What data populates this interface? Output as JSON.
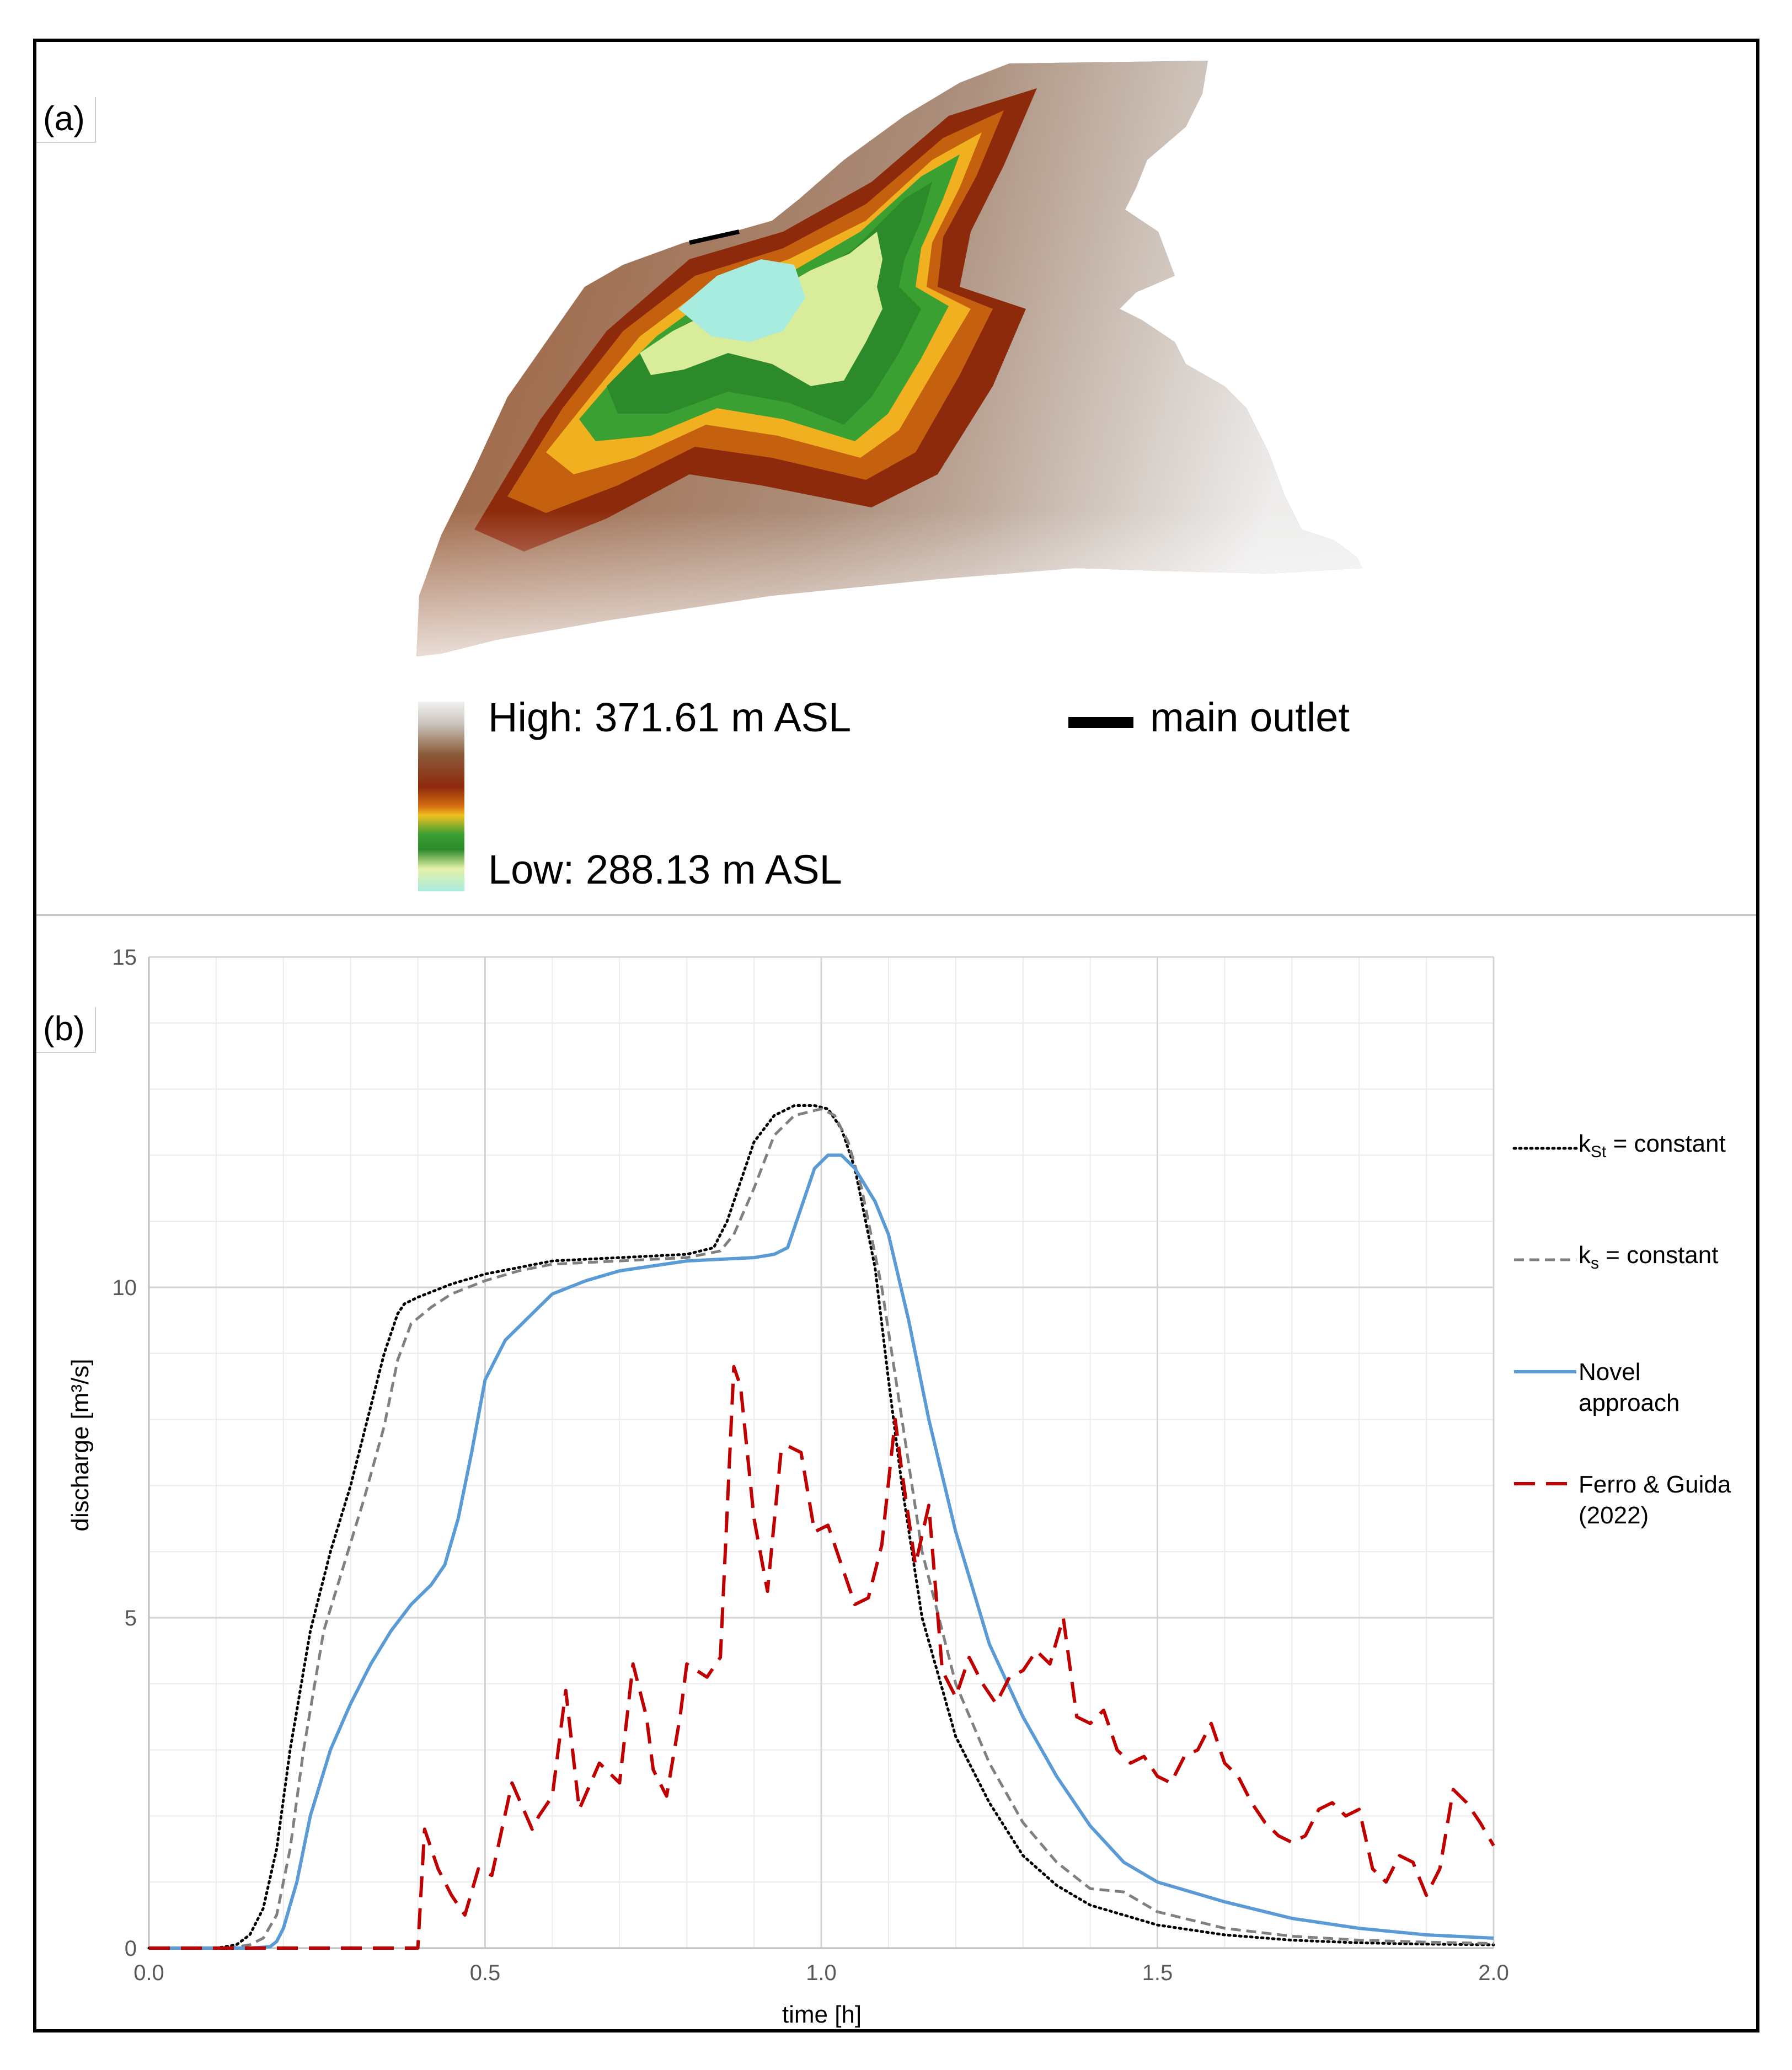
{
  "panel_a": {
    "label": "(a)",
    "legend_high": "High: 371.61 m ASL",
    "legend_low": "Low: 288.13 m ASL",
    "legend_outlet": "main outlet"
  },
  "panel_b": {
    "label": "(b)"
  },
  "chart_data": {
    "type": "line",
    "title": "",
    "xlabel": "time [h]",
    "ylabel": "discharge [m³/s]",
    "xlim": [
      0.0,
      2.0
    ],
    "ylim": [
      0,
      15
    ],
    "grid": true,
    "legend_position": "right",
    "x_ticks": [
      "0.0",
      "0.5",
      "1.0",
      "1.5",
      "2.0"
    ],
    "y_ticks": [
      "0",
      "5",
      "10",
      "15"
    ],
    "series": [
      {
        "name": "kSt = constant",
        "legend_main": "k",
        "legend_sub": "St",
        "legend_rest": " = constant",
        "color": "#000000",
        "style": "dotted",
        "x": [
          0,
          0.1,
          0.13,
          0.15,
          0.17,
          0.19,
          0.21,
          0.24,
          0.27,
          0.3,
          0.33,
          0.35,
          0.37,
          0.38,
          0.4,
          0.45,
          0.5,
          0.55,
          0.6,
          0.7,
          0.8,
          0.84,
          0.86,
          0.88,
          0.9,
          0.93,
          0.96,
          0.99,
          1.01,
          1.03,
          1.05,
          1.08,
          1.1,
          1.12,
          1.15,
          1.2,
          1.25,
          1.3,
          1.35,
          1.4,
          1.5,
          1.6,
          1.7,
          1.8,
          1.9,
          2.0
        ],
        "y": [
          0,
          0,
          0.05,
          0.2,
          0.6,
          1.5,
          3.0,
          4.8,
          6.0,
          7.0,
          8.2,
          9.0,
          9.6,
          9.75,
          9.85,
          10.05,
          10.2,
          10.3,
          10.4,
          10.45,
          10.5,
          10.6,
          11.0,
          11.6,
          12.2,
          12.6,
          12.75,
          12.75,
          12.7,
          12.4,
          11.8,
          10.3,
          8.6,
          7.0,
          5.0,
          3.2,
          2.2,
          1.4,
          0.95,
          0.65,
          0.35,
          0.2,
          0.12,
          0.08,
          0.06,
          0.05
        ]
      },
      {
        "name": "ks = constant",
        "legend_main": "k",
        "legend_sub": "s",
        "legend_rest": " = constant",
        "color": "#808080",
        "style": "dashed",
        "x": [
          0,
          0.12,
          0.15,
          0.17,
          0.19,
          0.21,
          0.23,
          0.26,
          0.29,
          0.32,
          0.35,
          0.37,
          0.39,
          0.42,
          0.45,
          0.5,
          0.55,
          0.6,
          0.7,
          0.8,
          0.85,
          0.87,
          0.9,
          0.93,
          0.96,
          1.0,
          1.02,
          1.04,
          1.06,
          1.09,
          1.12,
          1.15,
          1.2,
          1.25,
          1.3,
          1.35,
          1.4,
          1.45,
          1.5,
          1.6,
          1.7,
          1.8,
          1.9,
          2.0
        ],
        "y": [
          0,
          0,
          0.05,
          0.15,
          0.5,
          1.5,
          3.0,
          4.8,
          5.8,
          6.8,
          7.9,
          8.9,
          9.45,
          9.7,
          9.9,
          10.1,
          10.25,
          10.35,
          10.4,
          10.45,
          10.55,
          10.8,
          11.5,
          12.3,
          12.6,
          12.7,
          12.6,
          12.2,
          11.5,
          10.0,
          8.0,
          6.0,
          4.0,
          2.8,
          1.9,
          1.3,
          0.9,
          0.85,
          0.55,
          0.3,
          0.18,
          0.12,
          0.09,
          0.07
        ]
      },
      {
        "name": "Novel approach",
        "legend_lines": [
          "Novel",
          "approach"
        ],
        "color": "#5b9bd5",
        "style": "solid",
        "x": [
          0,
          0.15,
          0.18,
          0.19,
          0.2,
          0.22,
          0.24,
          0.27,
          0.3,
          0.33,
          0.36,
          0.39,
          0.42,
          0.44,
          0.46,
          0.48,
          0.5,
          0.53,
          0.57,
          0.6,
          0.65,
          0.7,
          0.8,
          0.9,
          0.93,
          0.95,
          0.97,
          0.99,
          1.01,
          1.03,
          1.05,
          1.08,
          1.1,
          1.13,
          1.16,
          1.2,
          1.25,
          1.3,
          1.35,
          1.4,
          1.45,
          1.5,
          1.6,
          1.7,
          1.8,
          1.9,
          2.0
        ],
        "y": [
          0,
          0,
          0.02,
          0.1,
          0.3,
          1.0,
          2.0,
          3.0,
          3.7,
          4.3,
          4.8,
          5.2,
          5.5,
          5.8,
          6.5,
          7.5,
          8.6,
          9.2,
          9.6,
          9.9,
          10.1,
          10.25,
          10.4,
          10.45,
          10.5,
          10.6,
          11.2,
          11.8,
          12.0,
          12.0,
          11.8,
          11.3,
          10.8,
          9.5,
          8.0,
          6.3,
          4.6,
          3.5,
          2.6,
          1.85,
          1.3,
          1.0,
          0.7,
          0.45,
          0.3,
          0.2,
          0.15
        ]
      },
      {
        "name": "Ferro & Guida (2022)",
        "legend_lines": [
          "Ferro & Guida",
          "(2022)"
        ],
        "color": "#c00000",
        "style": "longdash",
        "x": [
          0,
          0.4,
          0.41,
          0.43,
          0.45,
          0.47,
          0.49,
          0.51,
          0.54,
          0.57,
          0.58,
          0.6,
          0.62,
          0.63,
          0.64,
          0.67,
          0.7,
          0.72,
          0.74,
          0.75,
          0.77,
          0.79,
          0.8,
          0.83,
          0.85,
          0.87,
          0.88,
          0.9,
          0.92,
          0.94,
          0.95,
          0.97,
          0.99,
          1.01,
          1.03,
          1.05,
          1.07,
          1.09,
          1.11,
          1.12,
          1.14,
          1.16,
          1.18,
          1.2,
          1.22,
          1.24,
          1.26,
          1.28,
          1.3,
          1.32,
          1.34,
          1.36,
          1.38,
          1.4,
          1.42,
          1.44,
          1.46,
          1.48,
          1.5,
          1.52,
          1.54,
          1.56,
          1.58,
          1.6,
          1.62,
          1.64,
          1.66,
          1.68,
          1.7,
          1.72,
          1.74,
          1.76,
          1.78,
          1.8,
          1.82,
          1.84,
          1.86,
          1.88,
          1.9,
          1.92,
          1.94,
          1.96,
          1.98,
          2.0
        ],
        "y": [
          0,
          0,
          1.8,
          1.2,
          0.8,
          0.5,
          1.2,
          1.1,
          2.5,
          1.8,
          2.0,
          2.3,
          3.9,
          3.0,
          2.1,
          2.8,
          2.5,
          4.3,
          3.5,
          2.7,
          2.3,
          3.5,
          4.3,
          4.1,
          4.4,
          8.8,
          8.5,
          6.5,
          5.4,
          7.5,
          7.6,
          7.5,
          6.3,
          6.4,
          5.8,
          5.2,
          5.3,
          6.1,
          8.0,
          7.2,
          5.8,
          6.7,
          4.2,
          3.8,
          4.4,
          4.0,
          3.7,
          4.1,
          4.2,
          4.5,
          4.3,
          5.0,
          3.5,
          3.4,
          3.6,
          3.0,
          2.8,
          2.9,
          2.6,
          2.5,
          2.9,
          3.0,
          3.4,
          2.8,
          2.6,
          2.2,
          1.9,
          1.7,
          1.6,
          1.7,
          2.1,
          2.2,
          2.0,
          2.1,
          1.2,
          1.0,
          1.4,
          1.3,
          0.8,
          1.2,
          2.4,
          2.2,
          1.9,
          1.55
        ]
      }
    ]
  }
}
